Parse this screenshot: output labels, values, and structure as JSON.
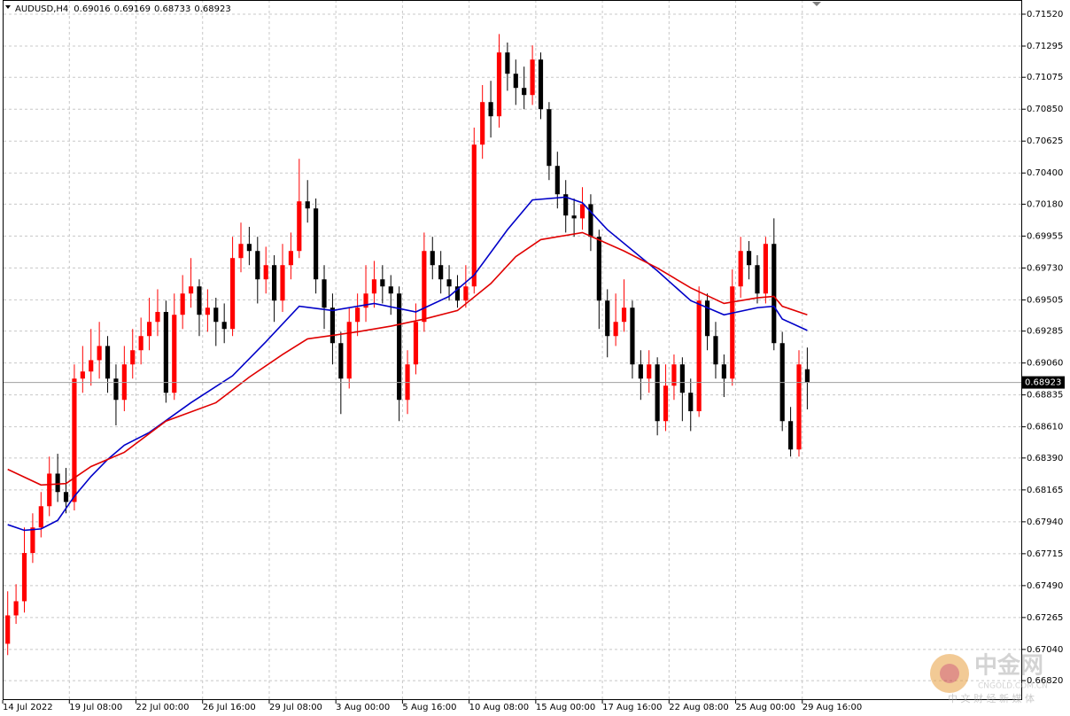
{
  "chart_data": {
    "type": "candlestick",
    "title": "AUDUSD,H4",
    "up_color": "#ff0000",
    "down_color": "#000000",
    "grid": true,
    "last_price_line": true,
    "xlim": [
      -0.5,
      121.8
    ],
    "ylim": [
      0.66683,
      0.7162
    ],
    "yticks": [
      {
        "value": 0.7152,
        "label": "0.71520"
      },
      {
        "value": 0.71295,
        "label": "0.71295"
      },
      {
        "value": 0.71075,
        "label": "0.71075"
      },
      {
        "value": 0.7085,
        "label": "0.70850"
      },
      {
        "value": 0.70625,
        "label": "0.70625"
      },
      {
        "value": 0.704,
        "label": "0.70400"
      },
      {
        "value": 0.7018,
        "label": "0.70180"
      },
      {
        "value": 0.69955,
        "label": "0.69955"
      },
      {
        "value": 0.6973,
        "label": "0.69730"
      },
      {
        "value": 0.69505,
        "label": "0.69505"
      },
      {
        "value": 0.69285,
        "label": "0.69285"
      },
      {
        "value": 0.6906,
        "label": "0.69060"
      },
      {
        "value": 0.68835,
        "label": "0.68835"
      },
      {
        "value": 0.6861,
        "label": "0.68610"
      },
      {
        "value": 0.6839,
        "label": "0.68390"
      },
      {
        "value": 0.68165,
        "label": "0.68165"
      },
      {
        "value": 0.6794,
        "label": "0.67940"
      },
      {
        "value": 0.67715,
        "label": "0.67715"
      },
      {
        "value": 0.6749,
        "label": "0.67490"
      },
      {
        "value": 0.67265,
        "label": "0.67265"
      },
      {
        "value": 0.6704,
        "label": "0.67040"
      },
      {
        "value": 0.6682,
        "label": "0.66820"
      }
    ],
    "xticks": [
      {
        "value": -0.6,
        "label": "14 Jul 2022"
      },
      {
        "value": 7.4,
        "label": "19 Jul 08:00"
      },
      {
        "value": 15.4,
        "label": "22 Jul 00:00"
      },
      {
        "value": 23.4,
        "label": "26 Jul 16:00"
      },
      {
        "value": 31.4,
        "label": "29 Jul 08:00"
      },
      {
        "value": 39.4,
        "label": "3 Aug 00:00"
      },
      {
        "value": 47.4,
        "label": "5 Aug 16:00"
      },
      {
        "value": 55.4,
        "label": "10 Aug 08:00"
      },
      {
        "value": 63.4,
        "label": "15 Aug 00:00"
      },
      {
        "value": 71.4,
        "label": "17 Aug 16:00"
      },
      {
        "value": 79.4,
        "label": "22 Aug 08:00"
      },
      {
        "value": 87.4,
        "label": "25 Aug 00:00"
      },
      {
        "value": 95.4,
        "label": "29 Aug 16:00"
      }
    ],
    "candles": [
      [
        0.6708,
        0.6745,
        0.67,
        0.6728
      ],
      [
        0.6728,
        0.675,
        0.6722,
        0.6738
      ],
      [
        0.6738,
        0.679,
        0.673,
        0.6772
      ],
      [
        0.6772,
        0.68,
        0.6765,
        0.679
      ],
      [
        0.679,
        0.6815,
        0.6783,
        0.6805
      ],
      [
        0.6805,
        0.684,
        0.6798,
        0.6828
      ],
      [
        0.6828,
        0.6842,
        0.6808,
        0.6815
      ],
      [
        0.6815,
        0.6832,
        0.68,
        0.6808
      ],
      [
        0.6808,
        0.6905,
        0.6802,
        0.6895
      ],
      [
        0.6895,
        0.6918,
        0.6885,
        0.69
      ],
      [
        0.69,
        0.693,
        0.689,
        0.6908
      ],
      [
        0.6908,
        0.6935,
        0.6895,
        0.6918
      ],
      [
        0.6918,
        0.6925,
        0.6885,
        0.6895
      ],
      [
        0.6895,
        0.6905,
        0.6862,
        0.688
      ],
      [
        0.688,
        0.6918,
        0.6872,
        0.6905
      ],
      [
        0.6905,
        0.693,
        0.6895,
        0.6915
      ],
      [
        0.6915,
        0.6938,
        0.6905,
        0.6925
      ],
      [
        0.6925,
        0.6952,
        0.6915,
        0.6935
      ],
      [
        0.6935,
        0.6958,
        0.6925,
        0.6942
      ],
      [
        0.6942,
        0.695,
        0.6878,
        0.6885
      ],
      [
        0.6885,
        0.6955,
        0.688,
        0.694
      ],
      [
        0.694,
        0.6968,
        0.693,
        0.6955
      ],
      [
        0.6955,
        0.698,
        0.6945,
        0.696
      ],
      [
        0.696,
        0.6965,
        0.6925,
        0.694
      ],
      [
        0.694,
        0.6958,
        0.6928,
        0.6945
      ],
      [
        0.6945,
        0.6952,
        0.6918,
        0.6935
      ],
      [
        0.6935,
        0.6948,
        0.692,
        0.693
      ],
      [
        0.693,
        0.6995,
        0.6925,
        0.698
      ],
      [
        0.698,
        0.7005,
        0.697,
        0.699
      ],
      [
        0.699,
        0.7002,
        0.6975,
        0.6985
      ],
      [
        0.6985,
        0.6995,
        0.6948,
        0.6965
      ],
      [
        0.6965,
        0.6988,
        0.6955,
        0.6975
      ],
      [
        0.6975,
        0.6982,
        0.6935,
        0.695
      ],
      [
        0.695,
        0.699,
        0.6942,
        0.6975
      ],
      [
        0.6975,
        0.6998,
        0.6965,
        0.6985
      ],
      [
        0.6985,
        0.705,
        0.698,
        0.702
      ],
      [
        0.702,
        0.7035,
        0.7005,
        0.7015
      ],
      [
        0.7015,
        0.7022,
        0.6955,
        0.6965
      ],
      [
        0.6965,
        0.6975,
        0.693,
        0.6945
      ],
      [
        0.6945,
        0.6955,
        0.6905,
        0.692
      ],
      [
        0.692,
        0.6928,
        0.687,
        0.6895
      ],
      [
        0.6895,
        0.6945,
        0.6888,
        0.6935
      ],
      [
        0.6935,
        0.6955,
        0.6925,
        0.6945
      ],
      [
        0.6945,
        0.6975,
        0.6935,
        0.6955
      ],
      [
        0.6955,
        0.6978,
        0.6945,
        0.6965
      ],
      [
        0.6965,
        0.6975,
        0.6948,
        0.696
      ],
      [
        0.696,
        0.6968,
        0.694,
        0.6955
      ],
      [
        0.6955,
        0.696,
        0.6865,
        0.688
      ],
      [
        0.688,
        0.6915,
        0.687,
        0.6905
      ],
      [
        0.6905,
        0.6948,
        0.6898,
        0.6935
      ],
      [
        0.6935,
        0.6998,
        0.6928,
        0.6985
      ],
      [
        0.6985,
        0.6995,
        0.6965,
        0.6975
      ],
      [
        0.6975,
        0.6985,
        0.6955,
        0.6965
      ],
      [
        0.6965,
        0.6975,
        0.695,
        0.696
      ],
      [
        0.696,
        0.6968,
        0.6945,
        0.695
      ],
      [
        0.695,
        0.6975,
        0.6945,
        0.696
      ],
      [
        0.696,
        0.7072,
        0.6955,
        0.706
      ],
      [
        0.706,
        0.7102,
        0.705,
        0.709
      ],
      [
        0.709,
        0.7105,
        0.7065,
        0.708
      ],
      [
        0.708,
        0.7138,
        0.7072,
        0.7125
      ],
      [
        0.7125,
        0.7132,
        0.7098,
        0.711
      ],
      [
        0.711,
        0.712,
        0.7088,
        0.71
      ],
      [
        0.71,
        0.7115,
        0.7085,
        0.7095
      ],
      [
        0.7095,
        0.713,
        0.7088,
        0.712
      ],
      [
        0.712,
        0.7125,
        0.7078,
        0.7085
      ],
      [
        0.7085,
        0.709,
        0.7035,
        0.7045
      ],
      [
        0.7045,
        0.7055,
        0.7015,
        0.7025
      ],
      [
        0.7025,
        0.7035,
        0.6998,
        0.701
      ],
      [
        0.701,
        0.7022,
        0.6995,
        0.7008
      ],
      [
        0.7008,
        0.703,
        0.7,
        0.7018
      ],
      [
        0.7018,
        0.7025,
        0.6985,
        0.6995
      ],
      [
        0.6995,
        0.7,
        0.693,
        0.695
      ],
      [
        0.695,
        0.6958,
        0.691,
        0.6925
      ],
      [
        0.6925,
        0.6955,
        0.6918,
        0.6935
      ],
      [
        0.6935,
        0.6965,
        0.6928,
        0.6945
      ],
      [
        0.6945,
        0.695,
        0.6895,
        0.6905
      ],
      [
        0.6905,
        0.6915,
        0.688,
        0.6895
      ],
      [
        0.6895,
        0.6915,
        0.6885,
        0.6905
      ],
      [
        0.6905,
        0.691,
        0.6855,
        0.6865
      ],
      [
        0.6865,
        0.6905,
        0.6858,
        0.689
      ],
      [
        0.689,
        0.6912,
        0.688,
        0.6905
      ],
      [
        0.6905,
        0.691,
        0.6865,
        0.6885
      ],
      [
        0.6885,
        0.6895,
        0.6858,
        0.6872
      ],
      [
        0.6872,
        0.696,
        0.6868,
        0.695
      ],
      [
        0.695,
        0.6955,
        0.6915,
        0.6925
      ],
      [
        0.6925,
        0.6935,
        0.6895,
        0.6905
      ],
      [
        0.6905,
        0.6912,
        0.6882,
        0.6895
      ],
      [
        0.6895,
        0.6972,
        0.689,
        0.696
      ],
      [
        0.696,
        0.6995,
        0.6952,
        0.6985
      ],
      [
        0.6985,
        0.6992,
        0.6965,
        0.6975
      ],
      [
        0.6975,
        0.6982,
        0.6948,
        0.6955
      ],
      [
        0.6955,
        0.6995,
        0.6948,
        0.699
      ],
      [
        0.699,
        0.7008,
        0.6915,
        0.692
      ],
      [
        0.692,
        0.6928,
        0.6858,
        0.6865
      ],
      [
        0.6865,
        0.6875,
        0.684,
        0.6845
      ],
      [
        0.6845,
        0.6915,
        0.684,
        0.6905
      ],
      [
        0.69016,
        0.69169,
        0.68733,
        0.68923
      ]
    ],
    "ma": [
      {
        "color": "#0000c8",
        "x": [
          0,
          2,
          4,
          6,
          8,
          10,
          12,
          14,
          17,
          22,
          27,
          31,
          35,
          39,
          44,
          49,
          53,
          56,
          60,
          63,
          67,
          69,
          72,
          78,
          82,
          86,
          90,
          92,
          93,
          96
        ],
        "values": [
          0.6792,
          0.6788,
          0.6789,
          0.6795,
          0.6812,
          0.6826,
          0.6838,
          0.6848,
          0.6857,
          0.6878,
          0.6897,
          0.6921,
          0.6946,
          0.6943,
          0.6948,
          0.6942,
          0.6953,
          0.6968,
          0.7,
          0.7021,
          0.7023,
          0.7019,
          0.7,
          0.6971,
          0.695,
          0.694,
          0.6945,
          0.6946,
          0.6937,
          0.6929
        ]
      },
      {
        "color": "#e00000",
        "x": [
          0,
          4,
          7,
          10,
          14,
          19,
          25,
          29,
          33,
          36,
          42,
          46,
          50,
          54,
          58,
          61,
          64,
          69,
          74,
          78,
          82,
          86,
          90,
          92,
          93,
          96
        ],
        "values": [
          0.6831,
          0.682,
          0.6821,
          0.6833,
          0.6843,
          0.6865,
          0.6878,
          0.6896,
          0.6912,
          0.6923,
          0.6928,
          0.6932,
          0.6937,
          0.6943,
          0.6962,
          0.6981,
          0.6993,
          0.6998,
          0.6985,
          0.6973,
          0.6959,
          0.6948,
          0.6952,
          0.6953,
          0.6946,
          0.694
        ]
      }
    ]
  },
  "watermark": {
    "name": "中金网",
    "site": "CNGOLD.COM.CN",
    "slogan": "中 文 财 经 新 媒 体"
  }
}
